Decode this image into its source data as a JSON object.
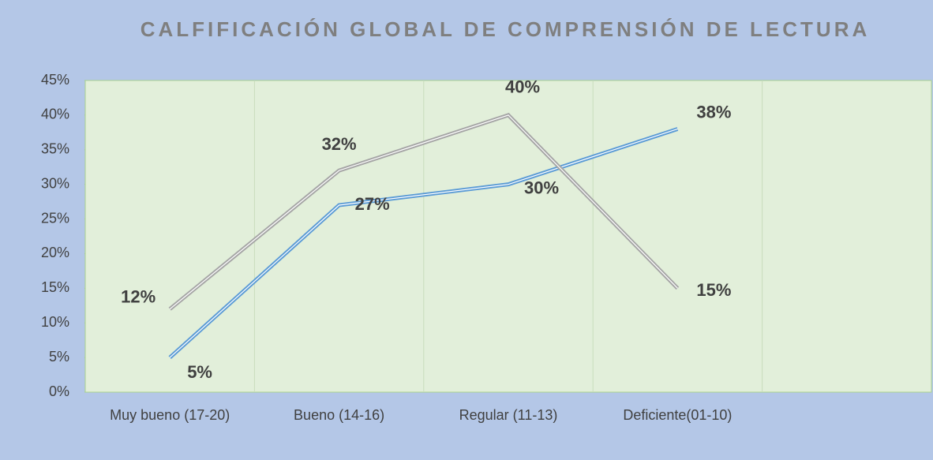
{
  "chart_data": {
    "type": "line",
    "title": "CALFIFICACIÓN GLOBAL DE COMPRENSIÓN DE LECTURA",
    "categories": [
      "Muy bueno (17-20)",
      "Bueno (14-16)",
      "Regular (11-13)",
      "Deficiente(01-10)",
      null
    ],
    "series": [
      {
        "color": "#5b9bd5",
        "values": [
          5,
          27,
          30,
          38,
          null
        ],
        "value_labels": [
          "5%",
          "27%",
          "30%",
          "38%",
          null
        ]
      },
      {
        "color": "#a5a5a5",
        "values": [
          12,
          32,
          40,
          15,
          null
        ],
        "value_labels": [
          "12%",
          "32%",
          "40%",
          "15%",
          null
        ]
      }
    ],
    "ylim": [
      0,
      45
    ],
    "yticks": [
      {
        "value": 0,
        "label": "0%"
      },
      {
        "value": 5,
        "label": "5%"
      },
      {
        "value": 10,
        "label": "10%"
      },
      {
        "value": 15,
        "label": "15%"
      },
      {
        "value": 20,
        "label": "20%"
      },
      {
        "value": 25,
        "label": "25%"
      },
      {
        "value": 30,
        "label": "30%"
      },
      {
        "value": 35,
        "label": "35%"
      },
      {
        "value": 40,
        "label": "40%"
      },
      {
        "value": 45,
        "label": "45%"
      }
    ],
    "grid": true
  }
}
